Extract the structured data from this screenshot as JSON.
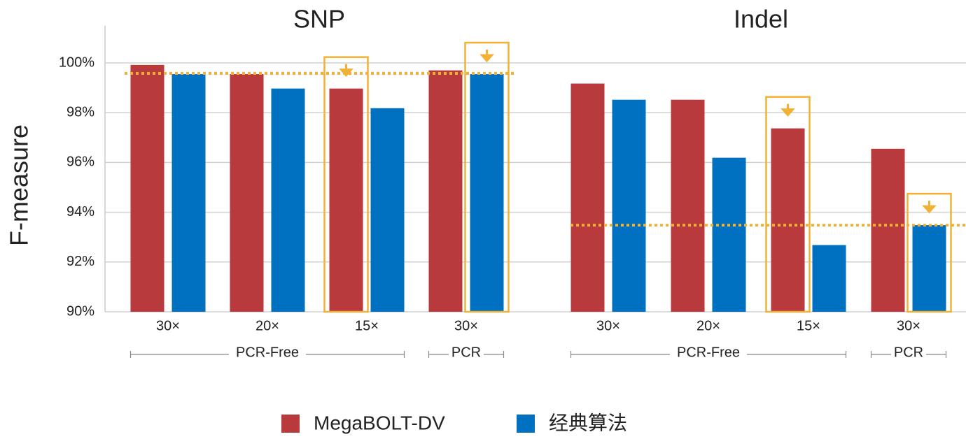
{
  "chart_data": [
    {
      "type": "bar",
      "title": "SNP",
      "ylabel": "F-measure",
      "ylim": [
        90,
        101.5
      ],
      "yticks": [
        {
          "value": 90,
          "label": "90%"
        },
        {
          "value": 92,
          "label": "92%"
        },
        {
          "value": 94,
          "label": "94%"
        },
        {
          "value": 96,
          "label": "96%"
        },
        {
          "value": 98,
          "label": "98%"
        },
        {
          "value": 100,
          "label": "100%"
        }
      ],
      "grid": true,
      "categories": [
        "30×",
        "20×",
        "15×",
        "30×"
      ],
      "groups": [
        "PCR-Free",
        "PCR"
      ],
      "series": [
        {
          "name": "MegaBOLT-DV",
          "color": "#b83a3d",
          "values": [
            99.92,
            99.55,
            98.97,
            99.7
          ]
        },
        {
          "name": "经典算法",
          "color": "#0070c0",
          "values": [
            99.55,
            98.97,
            98.18,
            99.55
          ]
        }
      ],
      "reference_line": 99.58
    },
    {
      "type": "bar",
      "title": "Indel",
      "categories": [
        "30×",
        "20×",
        "15×",
        "30×"
      ],
      "groups": [
        "PCR-Free",
        "PCR"
      ],
      "series": [
        {
          "color": "#b83a3d",
          "values": [
            99.17,
            98.52,
            97.37,
            96.55
          ]
        },
        {
          "color": "#0070c0",
          "values": [
            98.52,
            96.19,
            92.68,
            93.48
          ]
        }
      ],
      "reference_line": 93.48
    }
  ]
}
